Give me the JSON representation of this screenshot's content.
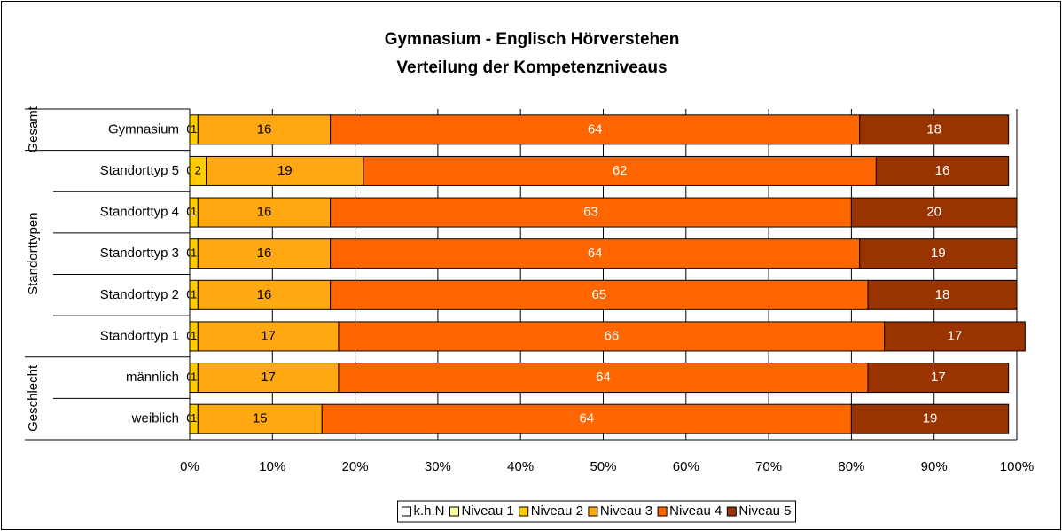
{
  "chart_data": {
    "type": "stacked_barh",
    "title": "Gymnasium - Englisch Hörverstehen",
    "subtitle": "Verteilung der Kompetenzniveaus",
    "categories": [
      "Gymnasium",
      "Standorttyp 5",
      "Standorttyp 4",
      "Standorttyp 3",
      "Standorttyp 2",
      "Standorttyp 1",
      "männlich",
      "weiblich"
    ],
    "groups": [
      {
        "name": "Gesamt",
        "size": 1
      },
      {
        "name": "Standorttypen",
        "size": 5
      },
      {
        "name": "Geschlecht",
        "size": 2
      }
    ],
    "series": [
      {
        "name": "k.h.N",
        "color": "#ffffff",
        "values": [
          0,
          0,
          0,
          0,
          0,
          0,
          0,
          0
        ]
      },
      {
        "name": "Niveau 1",
        "color": "#ffff99",
        "values": [
          0,
          0,
          0,
          0,
          0,
          0,
          0,
          0
        ]
      },
      {
        "name": "Niveau 2",
        "color": "#ffcc00",
        "values": [
          1,
          2,
          1,
          1,
          1,
          1,
          1,
          1
        ]
      },
      {
        "name": "Niveau 3",
        "color": "#ffa811",
        "values": [
          16,
          19,
          16,
          16,
          16,
          17,
          17,
          15
        ]
      },
      {
        "name": "Niveau 4",
        "color": "#ff6600",
        "values": [
          64,
          62,
          63,
          64,
          65,
          66,
          64,
          64
        ]
      },
      {
        "name": "Niveau 5",
        "color": "#993300",
        "values": [
          18,
          16,
          20,
          19,
          18,
          17,
          17,
          19
        ]
      }
    ],
    "xlim": [
      0,
      100
    ],
    "xticks": [
      {
        "value": 0,
        "label": "0%"
      },
      {
        "value": 10,
        "label": "10%"
      },
      {
        "value": 20,
        "label": "20%"
      },
      {
        "value": 30,
        "label": "30%"
      },
      {
        "value": 40,
        "label": "40%"
      },
      {
        "value": 50,
        "label": "50%"
      },
      {
        "value": 60,
        "label": "60%"
      },
      {
        "value": 70,
        "label": "70%"
      },
      {
        "value": 80,
        "label": "80%"
      },
      {
        "value": 90,
        "label": "90%"
      },
      {
        "value": 100,
        "label": "100%"
      }
    ],
    "grid": true,
    "legend": "bottom"
  }
}
